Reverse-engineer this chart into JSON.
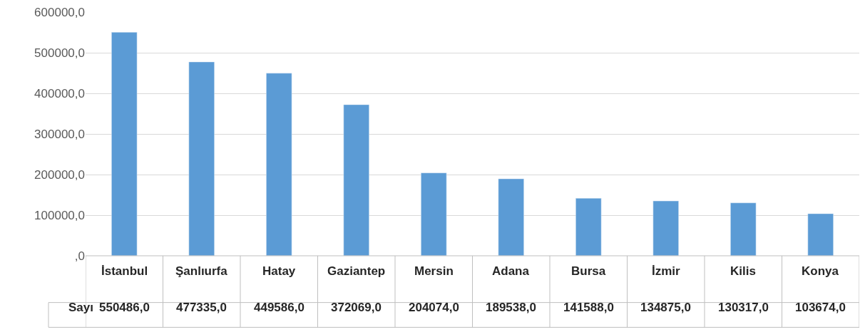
{
  "chart_data": {
    "type": "bar",
    "categories": [
      "İstanbul",
      "Şanlıurfa",
      "Hatay",
      "Gaziantep",
      "Mersin",
      "Adana",
      "Bursa",
      "İzmir",
      "Kilis",
      "Konya"
    ],
    "series": [
      {
        "name": "Sayı",
        "color": "#5b9bd5",
        "values": [
          550486.0,
          477335.0,
          449586.0,
          372069.0,
          204074.0,
          189538.0,
          141588.0,
          134875.0,
          130317.0,
          103674.0
        ],
        "value_labels": [
          "550486,0",
          "477335,0",
          "449586,0",
          "372069,0",
          "204074,0",
          "189538,0",
          "141588,0",
          "134875,0",
          "130317,0",
          "103674,0"
        ]
      }
    ],
    "ylim": [
      0,
      600000
    ],
    "yticks": [
      {
        "value": 0,
        "label": ",0"
      },
      {
        "value": 100000,
        "label": "100000,0"
      },
      {
        "value": 200000,
        "label": "200000,0"
      },
      {
        "value": 300000,
        "label": "300000,0"
      },
      {
        "value": 400000,
        "label": "400000,0"
      },
      {
        "value": 500000,
        "label": "500000,0"
      },
      {
        "value": 600000,
        "label": "600000,0"
      }
    ],
    "grid": "y",
    "legend": false
  }
}
